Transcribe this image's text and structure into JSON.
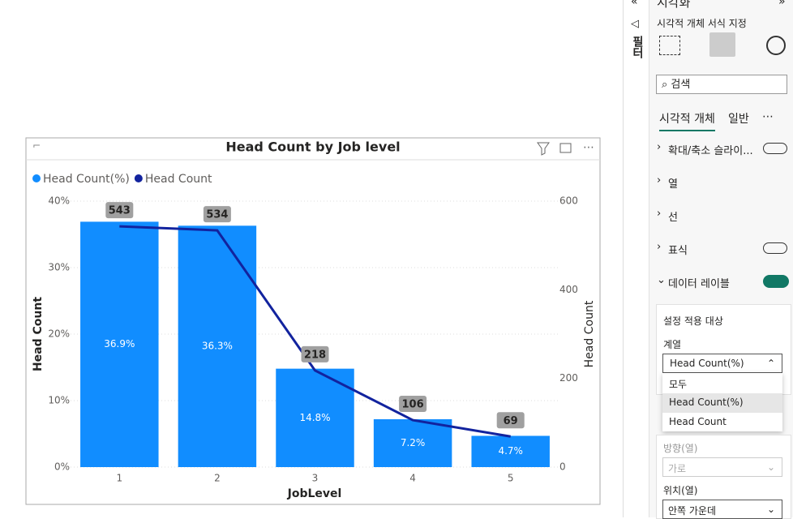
{
  "chart_data": {
    "type": "bar",
    "title": "Head Count by Job level",
    "x_label": "JobLevel",
    "y_label": "Head Count",
    "y2_label": "Head Count",
    "categories": [
      "1",
      "2",
      "3",
      "4",
      "5"
    ],
    "series": [
      {
        "name": "Head Count(%)",
        "type": "bar",
        "color": "#118DFF",
        "values": [
          36.9,
          36.3,
          14.8,
          7.2,
          4.7
        ],
        "value_labels": [
          "36.9%",
          "36.3%",
          "14.8%",
          "7.2%",
          "4.7%"
        ]
      },
      {
        "name": "Head Count",
        "type": "line",
        "axis": "y2",
        "color": "#12239E",
        "values": [
          543,
          534,
          218,
          106,
          69
        ]
      }
    ],
    "ylim": [
      0,
      40
    ],
    "yticks": [
      {
        "value": 0,
        "label": "0%"
      },
      {
        "value": 10,
        "label": "10%"
      },
      {
        "value": 20,
        "label": "20%"
      },
      {
        "value": 30,
        "label": "30%"
      },
      {
        "value": 40,
        "label": "40%"
      }
    ],
    "y2lim": [
      0,
      600
    ],
    "y2ticks": [
      0,
      200,
      400,
      600
    ],
    "grid": true,
    "legend": "top-left"
  },
  "panel": {
    "header": "시각화",
    "filter_label": "필터",
    "subtitle": "시각적 개체 서식 지정",
    "search": "검색",
    "tabs": [
      "시각적 개체",
      "일반",
      "⋯"
    ],
    "sections": [
      "확대/축소 슬라이...",
      "열",
      "선",
      "표식",
      "데이터 레이블"
    ],
    "apply_to": "설정 적용 대상",
    "series_label": "계열",
    "series_selected": "Head Count(%)",
    "options": [
      "모두",
      "Head Count(%)",
      "Head Count"
    ],
    "direction_label": "방향(열)",
    "direction_value": "가로",
    "position_label": "위치(열)",
    "position_value": "안쪽 가운데"
  }
}
